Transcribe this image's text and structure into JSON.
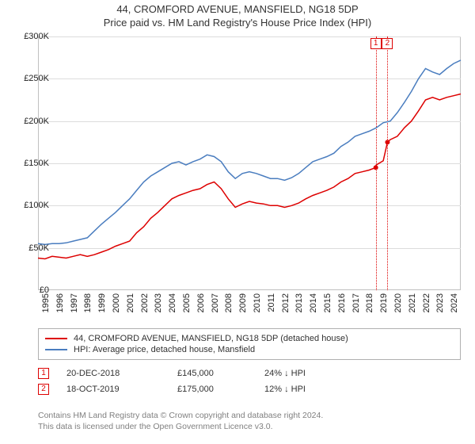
{
  "title": {
    "line1": "44, CROMFORD AVENUE, MANSFIELD, NG18 5DP",
    "line2": "Price paid vs. HM Land Registry's House Price Index (HPI)"
  },
  "chart": {
    "type": "line",
    "background_color": "#ffffff",
    "grid_color": "#dcdcdc",
    "border_color": "#c0c0c0",
    "ylim": [
      0,
      300000
    ],
    "ytick_step": 50000,
    "yticks": [
      0,
      50000,
      100000,
      150000,
      200000,
      250000,
      300000
    ],
    "ytick_labels": [
      "£0",
      "£50K",
      "£100K",
      "£150K",
      "£200K",
      "£250K",
      "£300K"
    ],
    "xlim": [
      1995,
      2025
    ],
    "xticks": [
      1995,
      1996,
      1997,
      1998,
      1999,
      2000,
      2001,
      2002,
      2003,
      2004,
      2005,
      2006,
      2007,
      2008,
      2009,
      2010,
      2011,
      2012,
      2013,
      2014,
      2015,
      2016,
      2017,
      2018,
      2019,
      2020,
      2021,
      2022,
      2023,
      2024
    ],
    "label_fontsize": 11,
    "series": [
      {
        "name": "price_paid",
        "label": "44, CROMFORD AVENUE, MANSFIELD, NG18 5DP (detached house)",
        "color": "#dd0000",
        "line_width": 1.5,
        "x": [
          1995,
          1995.5,
          1996,
          1996.5,
          1997,
          1997.5,
          1998,
          1998.5,
          1999,
          1999.5,
          2000,
          2000.5,
          2001,
          2001.5,
          2002,
          2002.5,
          2003,
          2003.5,
          2004,
          2004.5,
          2005,
          2005.5,
          2006,
          2006.5,
          2007,
          2007.5,
          2008,
          2008.5,
          2009,
          2009.5,
          2010,
          2010.5,
          2011,
          2011.5,
          2012,
          2012.5,
          2013,
          2013.5,
          2014,
          2014.5,
          2015,
          2015.5,
          2016,
          2016.5,
          2017,
          2017.5,
          2018,
          2018.5,
          2018.97,
          2019,
          2019.5,
          2019.8,
          2020,
          2020.5,
          2021,
          2021.5,
          2022,
          2022.5,
          2023,
          2023.5,
          2024,
          2024.5,
          2025
        ],
        "y": [
          38000,
          37000,
          40000,
          39000,
          38000,
          40000,
          42000,
          40000,
          42000,
          45000,
          48000,
          52000,
          55000,
          58000,
          68000,
          75000,
          85000,
          92000,
          100000,
          108000,
          112000,
          115000,
          118000,
          120000,
          125000,
          128000,
          120000,
          108000,
          98000,
          102000,
          105000,
          103000,
          102000,
          100000,
          100000,
          98000,
          100000,
          103000,
          108000,
          112000,
          115000,
          118000,
          122000,
          128000,
          132000,
          138000,
          140000,
          142000,
          145000,
          148000,
          153000,
          175000,
          178000,
          182000,
          192000,
          200000,
          212000,
          225000,
          228000,
          225000,
          228000,
          230000,
          232000
        ]
      },
      {
        "name": "hpi",
        "label": "HPI: Average price, detached house, Mansfield",
        "color": "#4a7dbf",
        "line_width": 1.5,
        "x": [
          1995,
          1995.5,
          1996,
          1996.5,
          1997,
          1997.5,
          1998,
          1998.5,
          1999,
          1999.5,
          2000,
          2000.5,
          2001,
          2001.5,
          2002,
          2002.5,
          2003,
          2003.5,
          2004,
          2004.5,
          2005,
          2005.5,
          2006,
          2006.5,
          2007,
          2007.5,
          2008,
          2008.5,
          2009,
          2009.5,
          2010,
          2010.5,
          2011,
          2011.5,
          2012,
          2012.5,
          2013,
          2013.5,
          2014,
          2014.5,
          2015,
          2015.5,
          2016,
          2016.5,
          2017,
          2017.5,
          2018,
          2018.5,
          2019,
          2019.5,
          2020,
          2020.5,
          2021,
          2021.5,
          2022,
          2022.5,
          2023,
          2023.5,
          2024,
          2024.5,
          2025
        ],
        "y": [
          55000,
          54000,
          55000,
          55000,
          56000,
          58000,
          60000,
          62000,
          70000,
          78000,
          85000,
          92000,
          100000,
          108000,
          118000,
          128000,
          135000,
          140000,
          145000,
          150000,
          152000,
          148000,
          152000,
          155000,
          160000,
          158000,
          152000,
          140000,
          132000,
          138000,
          140000,
          138000,
          135000,
          132000,
          132000,
          130000,
          133000,
          138000,
          145000,
          152000,
          155000,
          158000,
          162000,
          170000,
          175000,
          182000,
          185000,
          188000,
          192000,
          198000,
          200000,
          210000,
          222000,
          235000,
          250000,
          262000,
          258000,
          255000,
          262000,
          268000,
          272000
        ]
      }
    ],
    "markers": [
      {
        "number": "1",
        "x": 2018.97,
        "color": "#dd0000",
        "top_y": 0
      },
      {
        "number": "2",
        "x": 2019.8,
        "color": "#dd0000",
        "top_y": 0
      }
    ]
  },
  "legend": {
    "border_color": "#b0b0b0"
  },
  "sales": [
    {
      "marker": "1",
      "marker_color": "#dd0000",
      "date": "20-DEC-2018",
      "price": "£145,000",
      "delta": "24% ↓ HPI"
    },
    {
      "marker": "2",
      "marker_color": "#dd0000",
      "date": "18-OCT-2019",
      "price": "£175,000",
      "delta": "12% ↓ HPI"
    }
  ],
  "footer": {
    "line1": "Contains HM Land Registry data © Crown copyright and database right 2024.",
    "line2": "This data is licensed under the Open Government Licence v3.0."
  }
}
